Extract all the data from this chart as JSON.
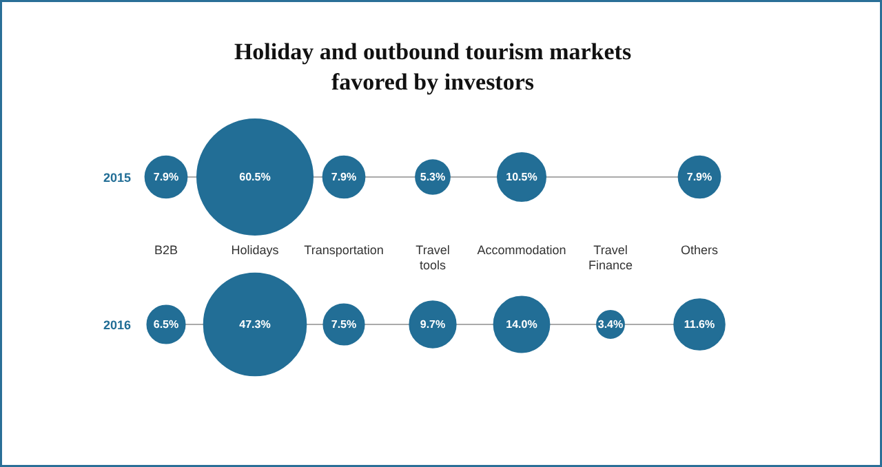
{
  "chart_data": {
    "type": "other",
    "title": "Holiday and outbound tourism markets\nfavored by investors",
    "categories": [
      "B2B",
      "Holidays",
      "Transportation",
      "Travel\ntools",
      "Accommodation",
      "Travel\nFinance",
      "Others"
    ],
    "series": [
      {
        "name": "2015",
        "color": "#226e96",
        "values": [
          7.9,
          60.5,
          7.9,
          5.3,
          10.5,
          null,
          7.9
        ],
        "value_labels": [
          "7.9%",
          "60.5%",
          "7.9%",
          "5.3%",
          "10.5%",
          null,
          "7.9%"
        ]
      },
      {
        "name": "2016",
        "color": "#226e96",
        "values": [
          6.5,
          47.3,
          7.5,
          9.7,
          14.0,
          3.4,
          11.6
        ],
        "value_labels": [
          "6.5%",
          "47.3%",
          "7.5%",
          "9.7%",
          "14.0%",
          "3.4%",
          "11.6%"
        ]
      }
    ]
  }
}
